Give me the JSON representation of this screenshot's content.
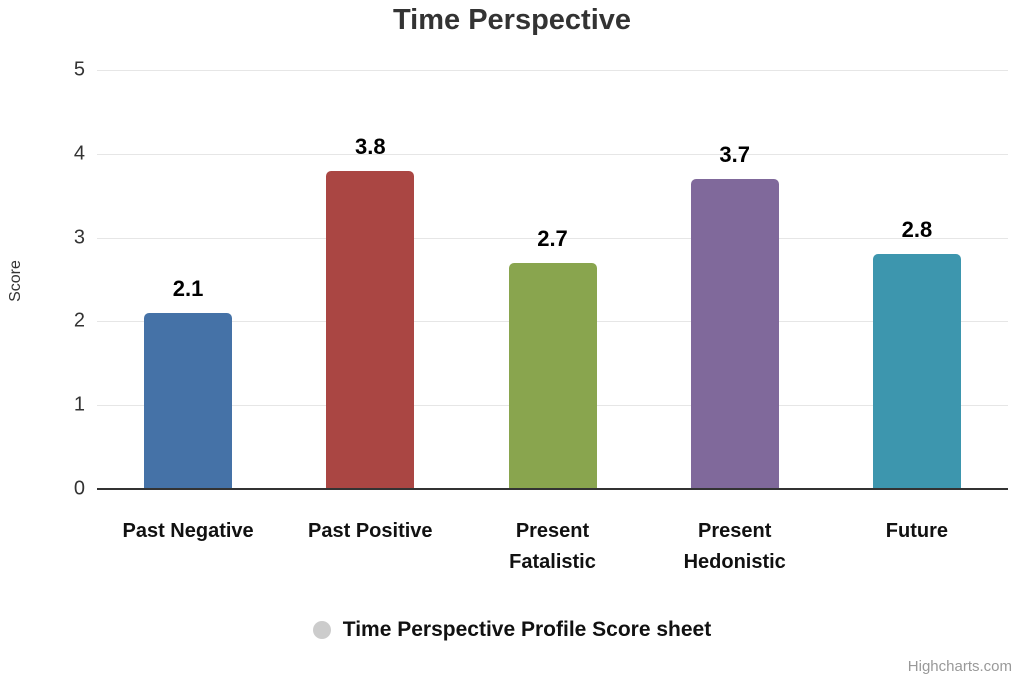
{
  "chart_data": {
    "type": "bar",
    "title": "Time Perspective",
    "xlabel": "",
    "ylabel": "Score",
    "ylim": [
      0,
      5
    ],
    "y_ticks": [
      0,
      1,
      2,
      3,
      4,
      5
    ],
    "categories": [
      "Past Negative",
      "Past Positive",
      "Present Fatalistic",
      "Present Hedonistic",
      "Future"
    ],
    "values": [
      2.1,
      3.8,
      2.7,
      3.7,
      2.8
    ],
    "data_labels": [
      "2.1",
      "3.8",
      "2.7",
      "3.7",
      "2.8"
    ],
    "bar_colors": [
      "#4572A7",
      "#AA4643",
      "#89A54E",
      "#80699B",
      "#3D96AE"
    ],
    "grid": true,
    "gridline_color": "#e6e6e6",
    "axis_line_color": "#333333",
    "legend_position": "bottom-center"
  },
  "legend": {
    "label": "Time Perspective Profile Score sheet",
    "marker_color": "#cccccc"
  },
  "credits": {
    "label": "Highcharts.com"
  }
}
